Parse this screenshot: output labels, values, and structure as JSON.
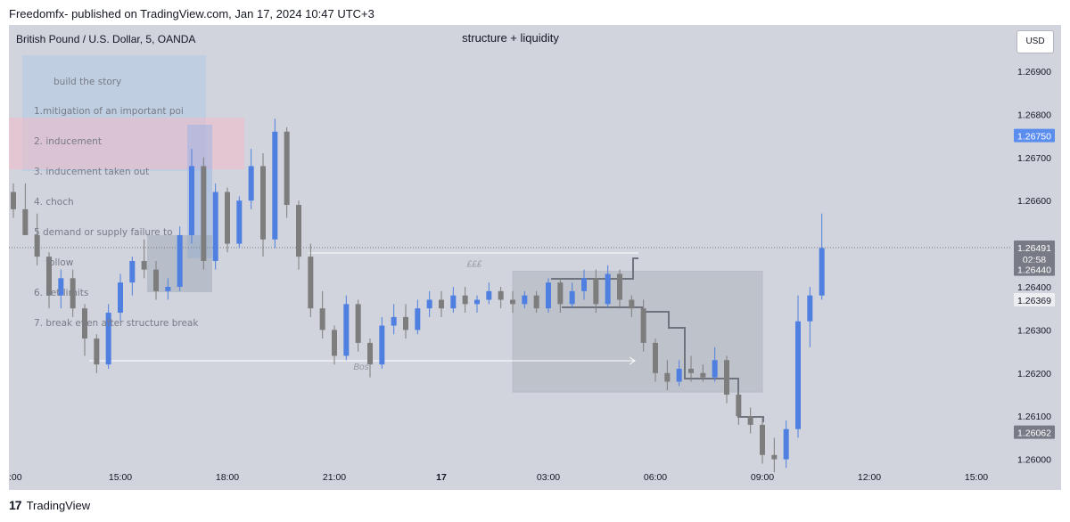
{
  "header": {
    "published": "Freedomfx- published on TradingView.com, Jan 17, 2024 10:47 UTC+3"
  },
  "toolbar": {
    "currency_label": "USD"
  },
  "footer": {
    "brand": "TradingView"
  },
  "notes": {
    "title": "build the story",
    "lines": [
      "1.mitigation of an important poi",
      "2. inducement",
      "3. inducement taken out",
      "4. choch",
      "5 demand or supply failure to",
      "    follow",
      "6. set limits",
      "7. break even after structure break"
    ]
  },
  "colors": {
    "up": "#4f7fe0",
    "down": "#7d7d7d",
    "panel": "#d1d4dc",
    "highlight": "#2962ff"
  },
  "chart_data": {
    "type": "candlestick",
    "symbol": "British Pound / U.S. Dollar, 5, OANDA",
    "title": "structure + liquidity",
    "x_ticks": [
      ":00",
      "15:00",
      "18:00",
      "21:00",
      "17",
      "03:00",
      "06:00",
      "09:00",
      "12:00",
      "15:00"
    ],
    "y_ticks": [
      "1.26900",
      "1.26800",
      "1.26700",
      "1.26600",
      "1.26400",
      "1.26300",
      "1.26200",
      "1.26100",
      "1.26000"
    ],
    "ylim": [
      1.2596,
      1.2696
    ],
    "price_labels": [
      {
        "value": 1.2675,
        "text": "1.26750",
        "role": "marked-level"
      },
      {
        "value": 1.26491,
        "text": "1.26491",
        "role": "last-price"
      },
      {
        "value": 1.2644,
        "text": "1.26440",
        "role": "level"
      },
      {
        "value": 1.26369,
        "text": "1.26369",
        "role": "level"
      },
      {
        "value": 1.26062,
        "text": "1.26062",
        "role": "level"
      }
    ],
    "countdown": "02:58",
    "annotations": [
      {
        "text": "£££",
        "price": 1.26446
      },
      {
        "text": "Bos",
        "price": 1.2621
      }
    ],
    "zones": [
      {
        "label": "supply-zone",
        "from_time": "19:20",
        "to_time": "13:00",
        "low": 1.26553,
        "high": 1.26778
      },
      {
        "label": "liquidity-zone",
        "from_time": "02:00",
        "to_time": "09:00",
        "low": 1.26156,
        "high": 1.26436
      }
    ],
    "candles": [
      [
        "12:00",
        1.2662,
        1.2664,
        1.2656,
        1.2658
      ],
      [
        "12:20",
        1.2658,
        1.2664,
        1.2652,
        1.2652
      ],
      [
        "12:40",
        1.2652,
        1.2657,
        1.2645,
        1.2647
      ],
      [
        "13:00",
        1.2647,
        1.2648,
        1.2635,
        1.2638
      ],
      [
        "13:20",
        1.2638,
        1.2644,
        1.2635,
        1.2642
      ],
      [
        "13:40",
        1.2642,
        1.2644,
        1.2633,
        1.2635
      ],
      [
        "14:00",
        1.2635,
        1.2636,
        1.2624,
        1.2628
      ],
      [
        "14:20",
        1.2628,
        1.2629,
        1.262,
        1.2622
      ],
      [
        "14:40",
        1.2622,
        1.2636,
        1.2621,
        1.2634
      ],
      [
        "15:00",
        1.2634,
        1.2643,
        1.2632,
        1.2641
      ],
      [
        "15:20",
        1.2641,
        1.2647,
        1.2638,
        1.2646
      ],
      [
        "15:40",
        1.2646,
        1.2651,
        1.2642,
        1.2644
      ],
      [
        "16:00",
        1.2644,
        1.2646,
        1.2637,
        1.2639
      ],
      [
        "16:20",
        1.2639,
        1.2642,
        1.2637,
        1.264
      ],
      [
        "16:40",
        1.264,
        1.2654,
        1.2639,
        1.2652
      ],
      [
        "17:00",
        1.2652,
        1.2672,
        1.265,
        1.2668
      ],
      [
        "17:20",
        1.2668,
        1.267,
        1.2644,
        1.2646
      ],
      [
        "17:40",
        1.2646,
        1.2664,
        1.2644,
        1.2662
      ],
      [
        "18:00",
        1.2662,
        1.2663,
        1.2648,
        1.265
      ],
      [
        "18:20",
        1.265,
        1.2661,
        1.2649,
        1.266
      ],
      [
        "18:40",
        1.266,
        1.2672,
        1.2658,
        1.2668
      ],
      [
        "19:00",
        1.2668,
        1.2671,
        1.2647,
        1.2651
      ],
      [
        "19:20",
        1.2651,
        1.2679,
        1.2649,
        1.2676
      ],
      [
        "19:40",
        1.2676,
        1.2677,
        1.2656,
        1.2659
      ],
      [
        "20:00",
        1.2659,
        1.266,
        1.2644,
        1.2647
      ],
      [
        "20:20",
        1.2647,
        1.265,
        1.2633,
        1.2635
      ],
      [
        "20:40",
        1.2635,
        1.2639,
        1.2628,
        1.263
      ],
      [
        "21:00",
        1.263,
        1.2631,
        1.2622,
        1.2624
      ],
      [
        "21:20",
        1.2624,
        1.2638,
        1.2623,
        1.2636
      ],
      [
        "21:40",
        1.2636,
        1.2637,
        1.2625,
        1.2627
      ],
      [
        "22:00",
        1.2627,
        1.2628,
        1.2619,
        1.2622
      ],
      [
        "22:20",
        1.2622,
        1.2633,
        1.2621,
        1.2631
      ],
      [
        "22:40",
        1.2631,
        1.2636,
        1.2629,
        1.2633
      ],
      [
        "23:00",
        1.2633,
        1.2636,
        1.2628,
        1.263
      ],
      [
        "23:20",
        1.263,
        1.2637,
        1.2629,
        1.2635
      ],
      [
        "23:40",
        1.2635,
        1.2639,
        1.2633,
        1.2637
      ],
      [
        "00:00",
        1.2637,
        1.2639,
        1.2633,
        1.2635
      ],
      [
        "00:20",
        1.2635,
        1.264,
        1.2634,
        1.2638
      ],
      [
        "00:40",
        1.2638,
        1.264,
        1.2634,
        1.2636
      ],
      [
        "01:00",
        1.2636,
        1.2638,
        1.2634,
        1.2637
      ],
      [
        "01:20",
        1.2637,
        1.2641,
        1.2636,
        1.2639
      ],
      [
        "01:40",
        1.2639,
        1.264,
        1.2635,
        1.2637
      ],
      [
        "02:00",
        1.2637,
        1.2639,
        1.2634,
        1.2636
      ],
      [
        "02:20",
        1.2636,
        1.2639,
        1.2635,
        1.2638
      ],
      [
        "02:40",
        1.2638,
        1.2639,
        1.2634,
        1.2635
      ],
      [
        "03:00",
        1.2635,
        1.2642,
        1.2634,
        1.2641
      ],
      [
        "03:20",
        1.2641,
        1.2642,
        1.2634,
        1.2636
      ],
      [
        "03:40",
        1.2636,
        1.2641,
        1.2635,
        1.2639
      ],
      [
        "04:00",
        1.2639,
        1.2644,
        1.2637,
        1.2642
      ],
      [
        "04:20",
        1.2642,
        1.2644,
        1.2634,
        1.2636
      ],
      [
        "04:40",
        1.2636,
        1.2645,
        1.2635,
        1.2643
      ],
      [
        "05:00",
        1.2643,
        1.2644,
        1.2635,
        1.2637
      ],
      [
        "05:20",
        1.2637,
        1.2638,
        1.2633,
        1.2635
      ],
      [
        "05:40",
        1.2635,
        1.2637,
        1.2625,
        1.2627
      ],
      [
        "06:00",
        1.2627,
        1.2628,
        1.2618,
        1.262
      ],
      [
        "06:20",
        1.262,
        1.2623,
        1.2616,
        1.2618
      ],
      [
        "06:40",
        1.2618,
        1.2623,
        1.2617,
        1.2621
      ],
      [
        "07:00",
        1.2621,
        1.2624,
        1.2618,
        1.262
      ],
      [
        "07:20",
        1.262,
        1.2622,
        1.2618,
        1.2619
      ],
      [
        "07:40",
        1.2619,
        1.2626,
        1.2618,
        1.2623
      ],
      [
        "08:00",
        1.2623,
        1.2624,
        1.2613,
        1.2615
      ],
      [
        "08:20",
        1.2615,
        1.2616,
        1.2608,
        1.261
      ],
      [
        "08:40",
        1.261,
        1.2612,
        1.2606,
        1.2608
      ],
      [
        "09:00",
        1.2608,
        1.261,
        1.2599,
        1.2601
      ],
      [
        "09:20",
        1.2601,
        1.2605,
        1.2597,
        1.26
      ],
      [
        "09:40",
        1.26,
        1.2609,
        1.2598,
        1.2607
      ],
      [
        "10:00",
        1.2607,
        1.2638,
        1.2605,
        1.2632
      ],
      [
        "10:20",
        1.2632,
        1.264,
        1.2626,
        1.2638
      ],
      [
        "10:40",
        1.2638,
        1.2657,
        1.2637,
        1.2649
      ]
    ]
  }
}
